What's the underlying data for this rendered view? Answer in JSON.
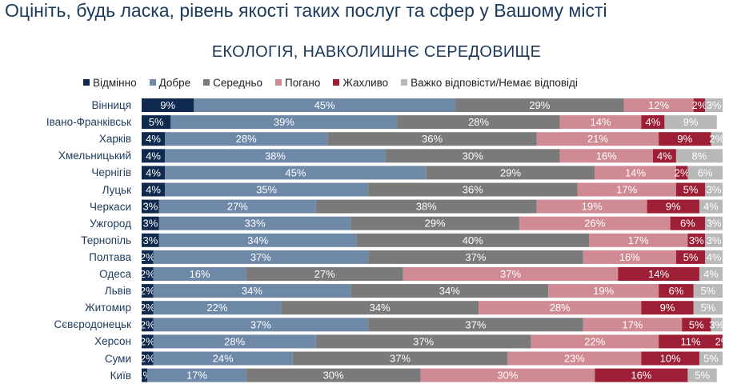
{
  "page": {
    "title": "Оцініть, будь ласка, рівень якості таких послуг та сфер у Вашому місті"
  },
  "chart_data": {
    "type": "bar",
    "orientation": "horizontal-stacked-100",
    "title": "ЕКОЛОГІЯ, НАВКОЛИШНЄ СЕРЕДОВИЩЕ",
    "xlabel": "",
    "ylabel": "",
    "xlim": [
      0,
      100
    ],
    "value_suffix": "%",
    "legend_position": "top",
    "categories": [
      "Вінниця",
      "Івано-Франківськ",
      "Харків",
      "Хмельницький",
      "Чернігів",
      "Луцьк",
      "Черкаси",
      "Ужгород",
      "Тернопіль",
      "Полтава",
      "Одеса",
      "Львів",
      "Житомир",
      "Сєвєродонецьк",
      "Херсон",
      "Суми",
      "Київ"
    ],
    "series": [
      {
        "name": "Відмінно",
        "color": "#0f2a4e",
        "label_color": "#ffffff",
        "values": [
          9,
          5,
          4,
          4,
          4,
          4,
          3,
          3,
          3,
          2,
          2,
          2,
          2,
          2,
          2,
          2,
          1
        ]
      },
      {
        "name": "Добре",
        "color": "#6e88a8",
        "label_color": "#ffffff",
        "values": [
          45,
          39,
          28,
          38,
          45,
          35,
          27,
          33,
          34,
          37,
          16,
          34,
          22,
          37,
          28,
          24,
          17
        ]
      },
      {
        "name": "Середньо",
        "color": "#7a7a7a",
        "label_color": "#ffffff",
        "values": [
          29,
          28,
          36,
          30,
          29,
          36,
          38,
          29,
          40,
          37,
          27,
          34,
          34,
          37,
          37,
          37,
          30
        ]
      },
      {
        "name": "Погано",
        "color": "#cf8a93",
        "label_color": "#ffffff",
        "values": [
          12,
          14,
          21,
          16,
          14,
          17,
          19,
          26,
          17,
          16,
          37,
          19,
          28,
          17,
          22,
          23,
          30
        ]
      },
      {
        "name": "Жахливо",
        "color": "#9c1f35",
        "label_color": "#ffffff",
        "values": [
          2,
          4,
          9,
          4,
          2,
          5,
          9,
          6,
          3,
          5,
          14,
          6,
          9,
          5,
          11,
          10,
          16
        ]
      },
      {
        "name": "Важко відповісти/Немає відповіді",
        "color": "#b8b8b8",
        "label_color": "#ffffff",
        "values": [
          3,
          9,
          2,
          8,
          6,
          3,
          4,
          3,
          3,
          4,
          4,
          5,
          5,
          3,
          2,
          5,
          5
        ]
      }
    ]
  }
}
